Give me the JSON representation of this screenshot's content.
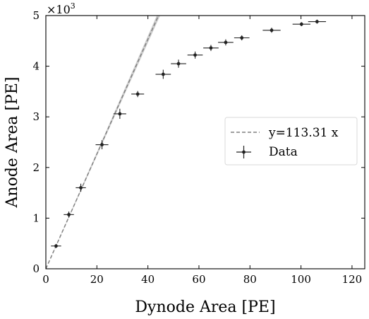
{
  "chart_data": {
    "type": "scatter",
    "xlabel": "Dynode Area [PE]",
    "ylabel": "Anode Area [PE]",
    "xlim": [
      0,
      125
    ],
    "ylim": [
      0,
      5000
    ],
    "xticks": [
      0,
      20,
      40,
      60,
      80,
      100,
      120
    ],
    "yticks": [
      0,
      1000,
      2000,
      3000,
      4000,
      5000
    ],
    "y_tick_labels": [
      "0",
      "1",
      "2",
      "3",
      "4",
      "5"
    ],
    "y_multiplier_label": "×10",
    "y_multiplier_exponent": "3",
    "legend_position": "center-right",
    "grid": false,
    "series": [
      {
        "name": "y=113.31 x",
        "kind": "line",
        "slope": 113.31,
        "color": "#808080",
        "style": "dashed"
      },
      {
        "name": "Data",
        "kind": "errorbar",
        "color": "#222222",
        "x": [
          4.0,
          9.0,
          13.7,
          22.0,
          29.0,
          36.0,
          46.0,
          52.0,
          58.5,
          64.7,
          70.5,
          76.8,
          88.5,
          100.2,
          106.3
        ],
        "y": [
          450,
          1070,
          1600,
          2450,
          3060,
          3450,
          3840,
          4050,
          4220,
          4360,
          4470,
          4560,
          4710,
          4830,
          4880
        ],
        "x_err": [
          2.0,
          2.0,
          2.0,
          2.5,
          2.5,
          2.5,
          3.0,
          3.0,
          3.0,
          3.0,
          3.0,
          3.0,
          3.5,
          3.5,
          3.5
        ],
        "y_err": [
          40,
          60,
          80,
          90,
          100,
          60,
          90,
          80,
          70,
          60,
          60,
          50,
          50,
          40,
          40
        ]
      }
    ]
  },
  "colors": {
    "fit_line": "#808080",
    "fit_band": "#c8c8c8",
    "data": "#222222",
    "legend_border": "#d9d9d9"
  }
}
